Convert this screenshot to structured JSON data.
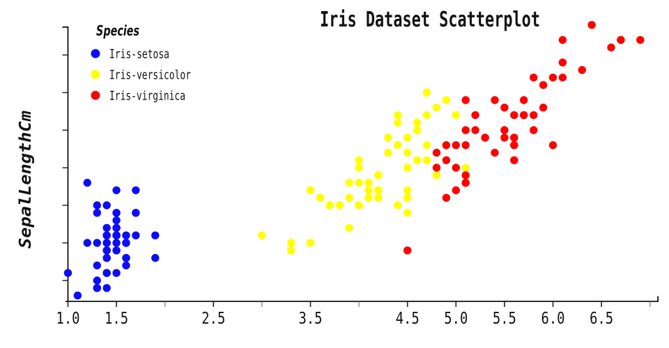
{
  "chart_data": {
    "type": "scatter",
    "title": "Iris Dataset Scatterplot",
    "xlabel": "",
    "ylabel": "SepalLengthCm",
    "xlim": [
      0.95,
      7.1
    ],
    "ylim": [
      4.22,
      7.92
    ],
    "grid": false,
    "background": "#ffffff",
    "legend": {
      "title": "Species",
      "title_color": "#cc66cc",
      "position": "upper left"
    },
    "x_ticks": [
      {
        "v": 1.0,
        "label": "1.0"
      },
      {
        "v": 1.5,
        "label": "1.5"
      },
      {
        "v": 2.0,
        "label": ""
      },
      {
        "v": 2.5,
        "label": "2.5"
      },
      {
        "v": 3.0,
        "label": ""
      },
      {
        "v": 3.5,
        "label": "3.5"
      },
      {
        "v": 4.0,
        "label": ""
      },
      {
        "v": 4.5,
        "label": "4.5"
      },
      {
        "v": 5.0,
        "label": "5.0"
      },
      {
        "v": 5.5,
        "label": "5.5"
      },
      {
        "v": 6.0,
        "label": "6.0"
      },
      {
        "v": 6.5,
        "label": "6.5"
      },
      {
        "v": 7.0,
        "label": ""
      }
    ],
    "y_ticks": [
      4.5,
      5.0,
      5.5,
      6.0,
      6.5,
      7.0,
      7.5
    ],
    "series": [
      {
        "name": "Iris-setosa",
        "color": "#0d0df5",
        "points": [
          [
            1.4,
            5.1
          ],
          [
            1.4,
            4.9
          ],
          [
            1.3,
            4.7
          ],
          [
            1.5,
            4.6
          ],
          [
            1.4,
            5.0
          ],
          [
            1.7,
            5.4
          ],
          [
            1.4,
            4.6
          ],
          [
            1.5,
            5.0
          ],
          [
            1.4,
            4.4
          ],
          [
            1.5,
            4.9
          ],
          [
            1.5,
            5.4
          ],
          [
            1.6,
            4.8
          ],
          [
            1.4,
            4.8
          ],
          [
            1.1,
            4.3
          ],
          [
            1.2,
            5.8
          ],
          [
            1.5,
            5.7
          ],
          [
            1.3,
            5.4
          ],
          [
            1.4,
            5.1
          ],
          [
            1.7,
            5.7
          ],
          [
            1.5,
            5.1
          ],
          [
            1.7,
            5.4
          ],
          [
            1.5,
            5.1
          ],
          [
            1.0,
            4.6
          ],
          [
            1.7,
            5.1
          ],
          [
            1.9,
            4.8
          ],
          [
            1.6,
            5.0
          ],
          [
            1.6,
            5.0
          ],
          [
            1.5,
            5.2
          ],
          [
            1.4,
            5.2
          ],
          [
            1.6,
            4.7
          ],
          [
            1.6,
            4.8
          ],
          [
            1.5,
            5.4
          ],
          [
            1.5,
            5.2
          ],
          [
            1.4,
            5.5
          ],
          [
            1.5,
            4.9
          ],
          [
            1.2,
            5.0
          ],
          [
            1.3,
            5.5
          ],
          [
            1.4,
            4.9
          ],
          [
            1.3,
            4.4
          ],
          [
            1.5,
            5.1
          ],
          [
            1.3,
            5.0
          ],
          [
            1.3,
            4.5
          ],
          [
            1.3,
            4.4
          ],
          [
            1.6,
            5.0
          ],
          [
            1.9,
            5.1
          ],
          [
            1.4,
            4.8
          ],
          [
            1.6,
            5.1
          ],
          [
            1.4,
            4.6
          ],
          [
            1.5,
            5.3
          ],
          [
            1.4,
            5.0
          ]
        ]
      },
      {
        "name": "Iris-versicolor",
        "color": "#ffff00",
        "points": [
          [
            4.7,
            7.0
          ],
          [
            4.5,
            6.4
          ],
          [
            4.9,
            6.9
          ],
          [
            4.0,
            5.5
          ],
          [
            4.6,
            6.5
          ],
          [
            4.5,
            5.7
          ],
          [
            4.7,
            6.3
          ],
          [
            3.3,
            4.9
          ],
          [
            4.6,
            6.6
          ],
          [
            3.9,
            5.2
          ],
          [
            3.5,
            5.0
          ],
          [
            4.2,
            5.9
          ],
          [
            4.0,
            6.0
          ],
          [
            4.7,
            6.1
          ],
          [
            3.6,
            5.6
          ],
          [
            4.4,
            6.7
          ],
          [
            4.5,
            5.6
          ],
          [
            4.1,
            5.8
          ],
          [
            4.5,
            6.2
          ],
          [
            3.9,
            5.6
          ],
          [
            4.8,
            5.9
          ],
          [
            4.0,
            6.1
          ],
          [
            4.9,
            6.3
          ],
          [
            4.7,
            6.1
          ],
          [
            4.3,
            6.4
          ],
          [
            4.4,
            6.6
          ],
          [
            4.8,
            6.8
          ],
          [
            5.0,
            6.7
          ],
          [
            4.5,
            6.0
          ],
          [
            3.5,
            5.7
          ],
          [
            3.8,
            5.5
          ],
          [
            3.7,
            5.5
          ],
          [
            3.9,
            5.8
          ],
          [
            5.1,
            6.0
          ],
          [
            4.5,
            5.4
          ],
          [
            4.5,
            6.0
          ],
          [
            4.7,
            6.7
          ],
          [
            4.4,
            6.3
          ],
          [
            4.1,
            5.6
          ],
          [
            4.0,
            5.5
          ],
          [
            4.4,
            5.5
          ],
          [
            4.6,
            6.1
          ],
          [
            4.0,
            5.8
          ],
          [
            3.3,
            5.0
          ],
          [
            4.2,
            5.6
          ],
          [
            4.2,
            5.7
          ],
          [
            4.2,
            5.7
          ],
          [
            4.3,
            6.2
          ],
          [
            3.0,
            5.1
          ],
          [
            4.1,
            5.7
          ]
        ]
      },
      {
        "name": "Iris-virginica",
        "color": "#ff0000",
        "points": [
          [
            6.0,
            6.3
          ],
          [
            5.1,
            5.8
          ],
          [
            5.9,
            7.1
          ],
          [
            5.6,
            6.3
          ],
          [
            5.8,
            6.5
          ],
          [
            6.6,
            7.6
          ],
          [
            4.5,
            4.9
          ],
          [
            6.3,
            7.3
          ],
          [
            5.8,
            6.7
          ],
          [
            6.1,
            7.2
          ],
          [
            5.1,
            6.5
          ],
          [
            5.3,
            6.4
          ],
          [
            5.5,
            6.8
          ],
          [
            5.0,
            5.7
          ],
          [
            5.1,
            5.8
          ],
          [
            5.3,
            6.4
          ],
          [
            5.5,
            6.5
          ],
          [
            6.7,
            7.7
          ],
          [
            6.9,
            7.7
          ],
          [
            5.0,
            6.0
          ],
          [
            5.7,
            6.9
          ],
          [
            4.9,
            5.6
          ],
          [
            6.7,
            7.7
          ],
          [
            4.9,
            6.3
          ],
          [
            5.7,
            6.7
          ],
          [
            6.0,
            7.2
          ],
          [
            4.8,
            6.2
          ],
          [
            4.9,
            6.1
          ],
          [
            5.6,
            6.4
          ],
          [
            5.8,
            7.2
          ],
          [
            6.1,
            7.4
          ],
          [
            6.4,
            7.9
          ],
          [
            5.6,
            6.4
          ],
          [
            5.1,
            6.3
          ],
          [
            5.6,
            6.1
          ],
          [
            6.1,
            7.7
          ],
          [
            5.6,
            6.3
          ],
          [
            5.5,
            6.4
          ],
          [
            4.8,
            6.0
          ],
          [
            5.4,
            6.9
          ],
          [
            5.6,
            6.7
          ],
          [
            5.1,
            6.9
          ],
          [
            5.1,
            5.8
          ],
          [
            5.9,
            6.8
          ],
          [
            5.7,
            6.7
          ],
          [
            5.2,
            6.7
          ],
          [
            5.0,
            6.3
          ],
          [
            5.2,
            6.5
          ],
          [
            5.4,
            6.2
          ],
          [
            5.1,
            5.9
          ]
        ]
      }
    ]
  },
  "style": {
    "spine_color": "#111111",
    "tick_color_major": "#222222",
    "tick_color_minor": "#9a9a9a",
    "tick_label_color": "#111111"
  }
}
